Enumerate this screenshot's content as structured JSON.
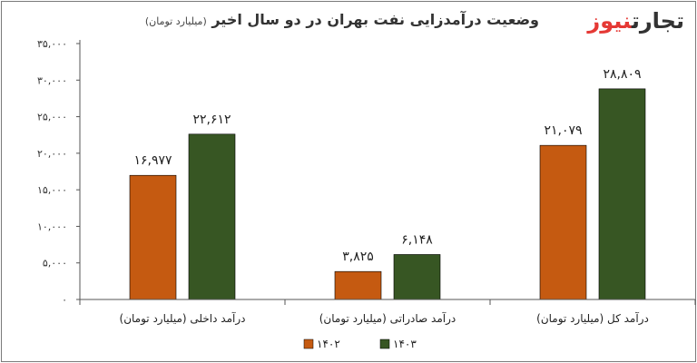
{
  "header": {
    "logo_part1": "تجارت",
    "logo_part2": "نیوز",
    "title": "وضعیت درآمدزایی نفت بهران در دو سال اخیر",
    "subtitle": "(میلیارد تومان)"
  },
  "colors": {
    "s1": "#c55a11",
    "s2": "#375623",
    "gridline": "#d9d9d9",
    "axis": "#555555"
  },
  "chart_data": {
    "type": "bar",
    "title": "وضعیت درآمدزایی نفت بهران در دو سال اخیر",
    "subtitle": "(میلیارد تومان)",
    "xlabel": "",
    "ylabel": "",
    "categories": [
      "درآمد داخلی (میلیارد تومان)",
      "درآمد صادراتی (میلیارد تومان)",
      "درآمد کل (میلیارد تومان)"
    ],
    "series": [
      {
        "name": "۱۴۰۲",
        "values": [
          16977,
          3825,
          21079
        ],
        "labels": [
          "۱۶,۹۷۷",
          "۳,۸۲۵",
          "۲۱,۰۷۹"
        ]
      },
      {
        "name": "۱۴۰۳",
        "values": [
          22612,
          6148,
          28809
        ],
        "labels": [
          "۲۲,۶۱۲",
          "۶,۱۴۸",
          "۲۸,۸۰۹"
        ]
      }
    ],
    "ylim": [
      0,
      35000
    ],
    "ytick_values": [
      0,
      5000,
      10000,
      15000,
      20000,
      25000,
      30000,
      35000
    ],
    "ytick_labels": [
      "۰",
      "۵,۰۰۰",
      "۱۰,۰۰۰",
      "۱۵,۰۰۰",
      "۲۰,۰۰۰",
      "۲۵,۰۰۰",
      "۳۰,۰۰۰",
      "۳۵,۰۰۰"
    ],
    "grid": false,
    "legend": "bottom-center"
  }
}
